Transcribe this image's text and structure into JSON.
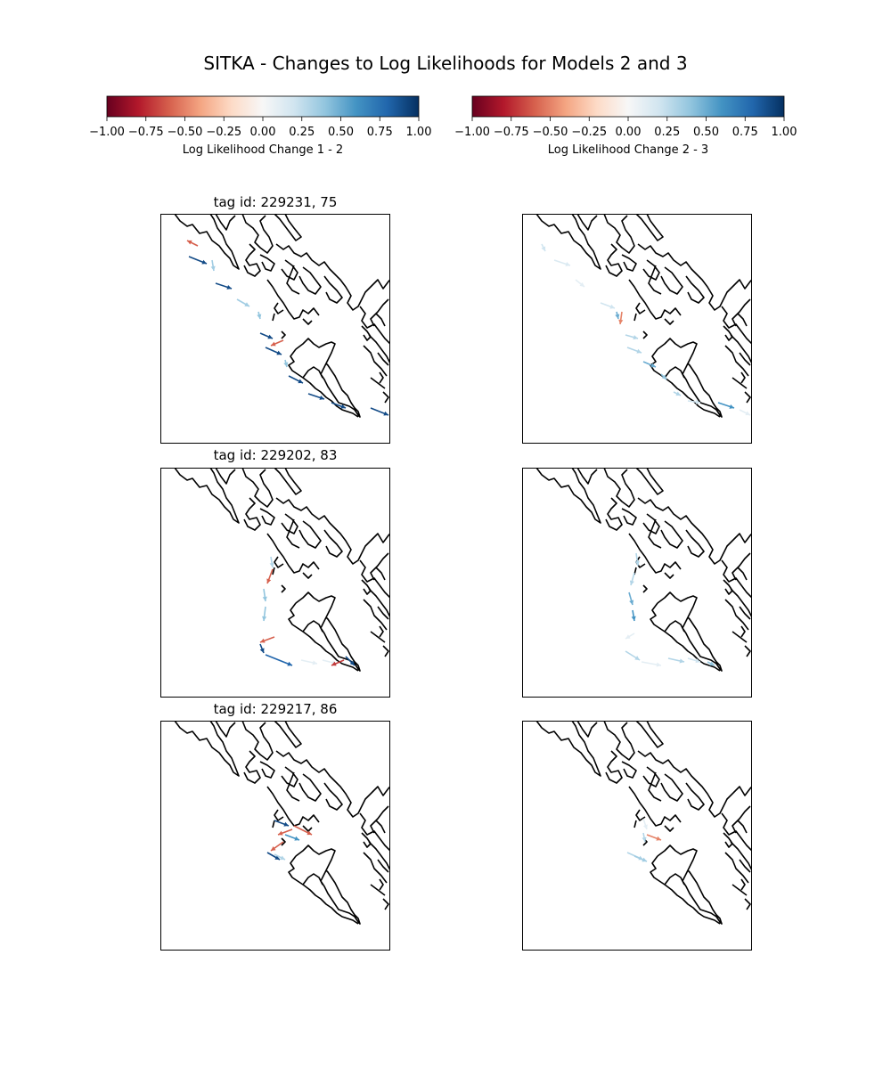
{
  "title": "SITKA - Changes to Log Likelihoods for Models 2 and 3",
  "colorbars": [
    {
      "label": "Log Likelihood Change 1 - 2",
      "ticks": [
        "−1.00",
        "−0.75",
        "−0.50",
        "−0.25",
        "0.00",
        "0.25",
        "0.50",
        "0.75",
        "1.00"
      ],
      "range": [
        -1.0,
        1.0
      ],
      "colormap": "RdBu"
    },
    {
      "label": "Log Likelihood Change 2 - 3",
      "ticks": [
        "−1.00",
        "−0.75",
        "−0.50",
        "−0.25",
        "0.00",
        "0.25",
        "0.50",
        "0.75",
        "1.00"
      ],
      "range": [
        -1.0,
        1.0
      ],
      "colormap": "RdBu"
    }
  ],
  "colormap_stops": [
    "#67001f",
    "#b2182b",
    "#d6604d",
    "#f4a582",
    "#fddbc7",
    "#f7f7f7",
    "#d1e5f0",
    "#92c5de",
    "#4393c3",
    "#2166ac",
    "#053061"
  ],
  "rows": [
    {
      "label": "tag id: 229231, 75"
    },
    {
      "label": "tag id: 229202, 83"
    },
    {
      "label": "tag id: 229217, 86"
    }
  ],
  "coastline_color": "#000000",
  "chart_data": {
    "type": "quiver",
    "note_units": "arrow colour encodes log likelihood change on a -1.00 to 1.00 scale",
    "panels": [
      {
        "row": 0,
        "col": 0,
        "values": [
          -0.6,
          0.9,
          0.35,
          0.9,
          0.35,
          0.4,
          0.9,
          -0.6,
          0.9,
          0.4,
          0.9,
          0.9,
          0.9,
          0.9
        ]
      },
      {
        "row": 0,
        "col": 1,
        "values": [
          0.2,
          0.15,
          0.1,
          0.2,
          0.5,
          -0.5,
          0.3,
          0.3,
          0.5,
          0.4,
          0.3,
          0.2,
          0.6,
          0.1
        ]
      },
      {
        "row": 1,
        "col": 0,
        "values": [
          0.3,
          -0.6,
          0.4,
          0.4,
          -0.6,
          0.9,
          0.8,
          0.1,
          0.1,
          -0.7,
          0.9
        ]
      },
      {
        "row": 1,
        "col": 1,
        "values": [
          0.3,
          0.3,
          0.5,
          0.6,
          0.1,
          0.3,
          0.1,
          0.3,
          0.2,
          0.4
        ]
      },
      {
        "row": 2,
        "col": 0,
        "values": [
          -0.6,
          0.9,
          -0.6,
          0.6,
          -0.6,
          0.9,
          0.3
        ]
      },
      {
        "row": 2,
        "col": 1,
        "values": [
          0.1,
          0.3,
          -0.5,
          0.3,
          0.35
        ]
      }
    ]
  }
}
